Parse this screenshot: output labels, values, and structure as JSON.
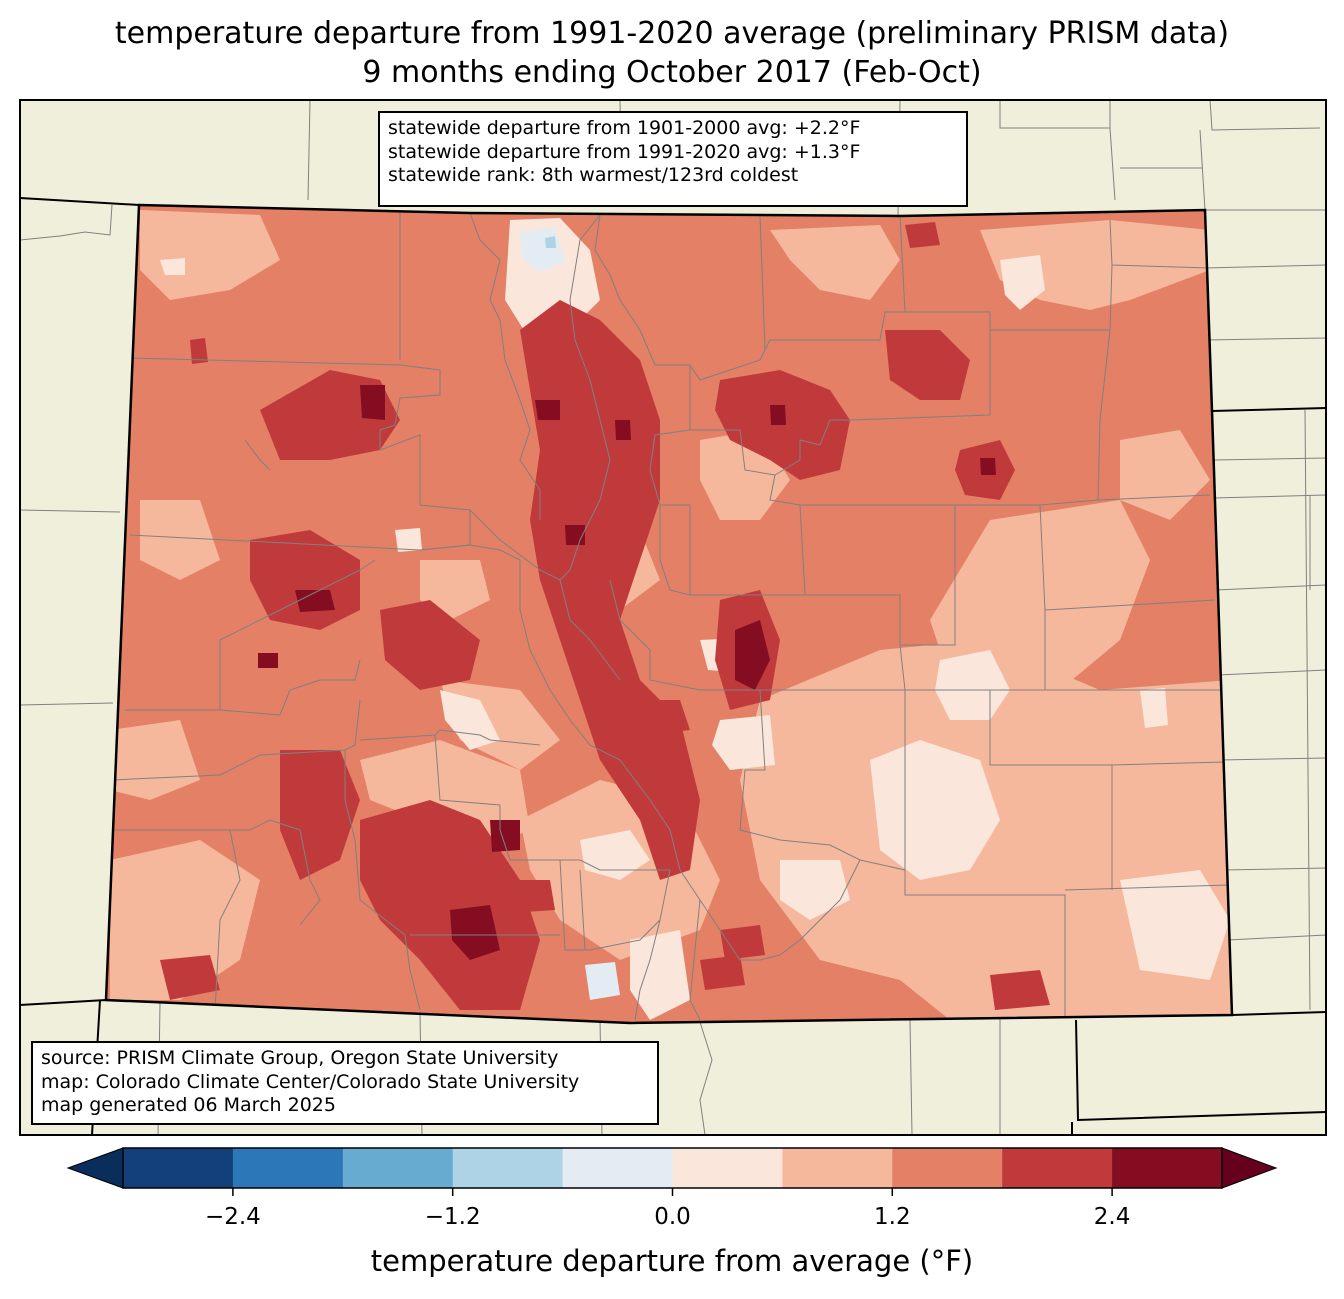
{
  "title_line1": "temperature departure from 1991-2020 average (preliminary PRISM data)",
  "title_line2": "9 months ending October 2017 (Feb-Oct)",
  "stats": {
    "line1": "statewide departure from 1901-2000 avg: +2.2°F",
    "line2": "statewide departure from 1991-2020 avg: +1.3°F",
    "line3": "statewide rank: 8th warmest/123rd coldest"
  },
  "source": {
    "line1": "source: PRISM Climate Group, Oregon State University",
    "line2": "map: Colorado Climate Center/Colorado State University",
    "line3": "map generated 06 March 2025"
  },
  "colorbar": {
    "label": "temperature departure from average (°F)",
    "bin_colors": [
      "#133f7a",
      "#2b77b7",
      "#68abd0",
      "#afd3e6",
      "#e4ecf3",
      "#fae6db",
      "#f6b89c",
      "#e38066",
      "#c13a3b",
      "#850d22"
    ],
    "under_color": "#0a2e5c",
    "over_color": "#67001f",
    "ticks": [
      {
        "value": -2.4,
        "label": "−2.4"
      },
      {
        "value": -1.2,
        "label": "−1.2"
      },
      {
        "value": 0.0,
        "label": "0.0"
      },
      {
        "value": 1.2,
        "label": "1.2"
      },
      {
        "value": 2.4,
        "label": "2.4"
      }
    ]
  },
  "colors": {
    "land": "#efefdb",
    "state_border": "#000000",
    "county_border": "#808080"
  }
}
